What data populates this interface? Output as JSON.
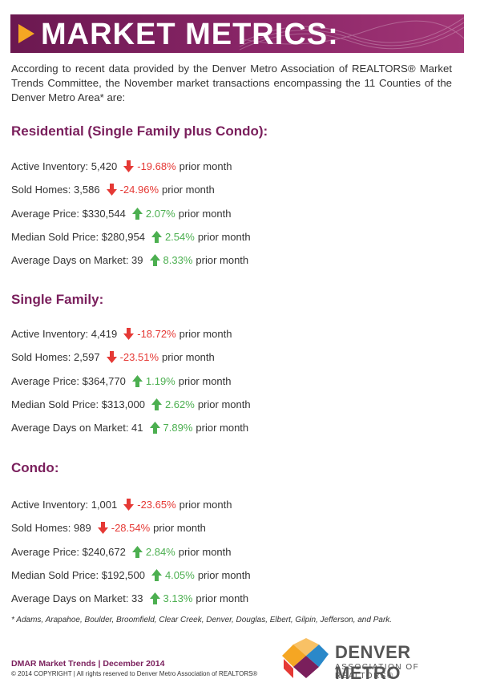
{
  "header": {
    "title": "MARKET METRICS:"
  },
  "intro": "According to recent data provided by the Denver Metro Association of REALTORS® Market Trends Committee, the November market transactions encompassing the 11 Counties of the  Denver Metro Area* are:",
  "colors": {
    "brand": "#7a1f5c",
    "accent": "#f5a623",
    "down": "#e53935",
    "up": "#4caf50"
  },
  "sections": [
    {
      "title": "Residential (Single Family plus Condo):",
      "rows": [
        {
          "label": "Active Inventory: 5,420",
          "dir": "down",
          "pct": "-19.68%",
          "suffix": "prior month"
        },
        {
          "label": "Sold Homes: 3,586",
          "dir": "down",
          "pct": "-24.96%",
          "suffix": "prior month"
        },
        {
          "label": "Average Price: $330,544",
          "dir": "up",
          "pct": "2.07%",
          "suffix": "prior month"
        },
        {
          "label": "Median Sold Price: $280,954",
          "dir": "up",
          "pct": "2.54%",
          "suffix": "prior month"
        },
        {
          "label": "Average Days on Market: 39",
          "dir": "up",
          "pct": "8.33%",
          "suffix": "prior month"
        }
      ]
    },
    {
      "title": "Single Family:",
      "rows": [
        {
          "label": "Active Inventory: 4,419",
          "dir": "down",
          "pct": "-18.72%",
          "suffix": "prior month"
        },
        {
          "label": "Sold Homes: 2,597",
          "dir": "down",
          "pct": "-23.51%",
          "suffix": "prior month"
        },
        {
          "label": "Average Price: $364,770",
          "dir": "up",
          "pct": "1.19%",
          "suffix": "prior month"
        },
        {
          "label": "Median Sold Price: $313,000",
          "dir": "up",
          "pct": "2.62%",
          "suffix": "prior month"
        },
        {
          "label": "Average Days on Market: 41",
          "dir": "up",
          "pct": "7.89%",
          "suffix": "prior month"
        }
      ]
    },
    {
      "title": "Condo:",
      "rows": [
        {
          "label": "Active Inventory:  1,001",
          "dir": "down",
          "pct": "-23.65%",
          "suffix": "prior month"
        },
        {
          "label": "Sold Homes: 989",
          "dir": "down",
          "pct": "-28.54%",
          "suffix": "prior month"
        },
        {
          "label": "Average Price: $240,672",
          "dir": "up",
          "pct": "2.84%",
          "suffix": "prior month"
        },
        {
          "label": "Median Sold Price: $192,500",
          "dir": "up",
          "pct": "4.05%",
          "suffix": "prior month"
        },
        {
          "label": "Average Days on Market: 33",
          "dir": "up",
          "pct": "3.13%",
          "suffix": "prior month"
        }
      ]
    }
  ],
  "footnote": "* Adams, Arapahoe, Boulder, Broomfield, Clear Creek, Denver, Douglas, Elbert, Gilpin, Jefferson, and Park.",
  "footer": {
    "line1": "DMAR Market Trends | December 2014",
    "line2": "© 2014 COPYRIGHT | All rights reserved to Denver Metro Association of REALTORS®"
  },
  "brand": {
    "name": "DENVER METRO",
    "tagline": "ASSOCIATION OF REALTORS®"
  }
}
